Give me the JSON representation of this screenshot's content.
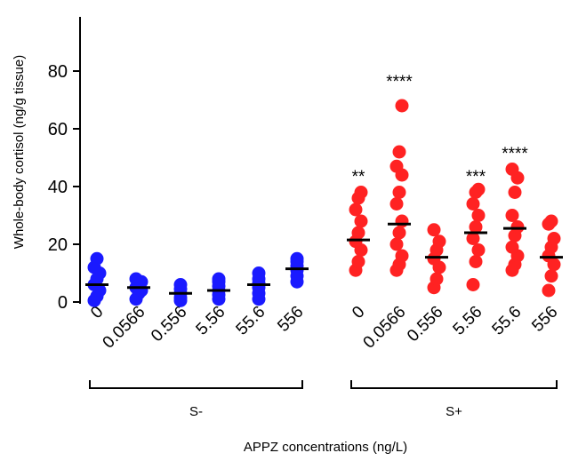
{
  "chart_data": {
    "type": "scatter",
    "ylabel": "Whole-body cortisol (ng/g tissue)",
    "xlabel": "APPZ concentrations (ng/L)",
    "ylim": [
      0,
      80
    ],
    "yticks": [
      0,
      20,
      40,
      60,
      80
    ],
    "grid": false,
    "categories": [
      "0",
      "0.0566",
      "0.556",
      "5.56",
      "55.6",
      "556",
      "0",
      "0.0566",
      "0.556",
      "5.56",
      "55.6",
      "556"
    ],
    "groups": [
      {
        "label": "S-",
        "category_indices": [
          0,
          1,
          2,
          3,
          4,
          5
        ]
      },
      {
        "label": "S+",
        "category_indices": [
          6,
          7,
          8,
          9,
          10,
          11
        ]
      }
    ],
    "series": [
      {
        "group": "S-",
        "color": "#1a1aff",
        "points": [
          {
            "category": 0,
            "values": [
              0.5,
              2,
              4,
              6,
              8,
              10,
              12,
              15
            ]
          },
          {
            "category": 1,
            "values": [
              1,
              3,
              4,
              5,
              6,
              7,
              8
            ]
          },
          {
            "category": 2,
            "values": [
              0.5,
              1.5,
              3,
              4.5,
              6
            ]
          },
          {
            "category": 3,
            "values": [
              1,
              2.5,
              4,
              5.5,
              7,
              8
            ]
          },
          {
            "category": 4,
            "values": [
              1,
              3,
              5,
              6.5,
              8,
              10
            ]
          },
          {
            "category": 5,
            "values": [
              7,
              9,
              11,
              12.5,
              14,
              15
            ]
          }
        ],
        "means": [
          6,
          5,
          3,
          4,
          6,
          11.5
        ]
      },
      {
        "group": "S+",
        "color": "#ff2222",
        "points": [
          {
            "category": 6,
            "values": [
              11,
              14,
              18,
              21,
              24,
              28,
              32,
              36,
              38
            ]
          },
          {
            "category": 7,
            "values": [
              11,
              13,
              16,
              20,
              24,
              28,
              34,
              38,
              44,
              47,
              52,
              68
            ]
          },
          {
            "category": 8,
            "values": [
              5,
              8,
              12,
              15,
              18,
              21,
              25
            ]
          },
          {
            "category": 9,
            "values": [
              6,
              14,
              18,
              22,
              26,
              30,
              34,
              38,
              39
            ]
          },
          {
            "category": 10,
            "values": [
              11,
              13,
              16,
              19,
              23,
              26,
              30,
              38,
              43,
              46
            ]
          },
          {
            "category": 11,
            "values": [
              4,
              9,
              13,
              16,
              19,
              22,
              27,
              28
            ]
          }
        ],
        "means": [
          21.5,
          27,
          15.5,
          24,
          25.5,
          15.5
        ]
      }
    ],
    "annotations": [
      {
        "category": 6,
        "text": "**",
        "y": 44
      },
      {
        "category": 7,
        "text": "****",
        "y": 77
      },
      {
        "category": 9,
        "text": "***",
        "y": 44
      },
      {
        "category": 10,
        "text": "****",
        "y": 52
      }
    ]
  }
}
